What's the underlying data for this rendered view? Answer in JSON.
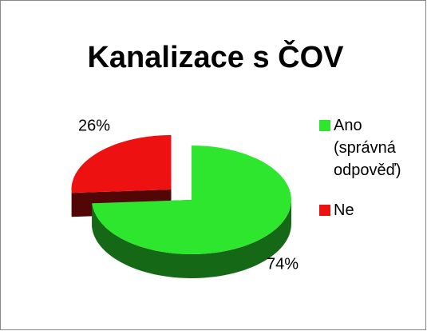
{
  "chart_data": {
    "type": "pie3d",
    "title": "Kanalizace s ČOV",
    "categories": [
      "Ano (správná odpověď)",
      "Ne"
    ],
    "values": [
      74,
      26
    ],
    "value_labels": [
      "74%",
      "26%"
    ],
    "colors": [
      "#2ee62e",
      "#ee1111"
    ],
    "exploded": [
      false,
      true
    ],
    "legend": "right"
  }
}
